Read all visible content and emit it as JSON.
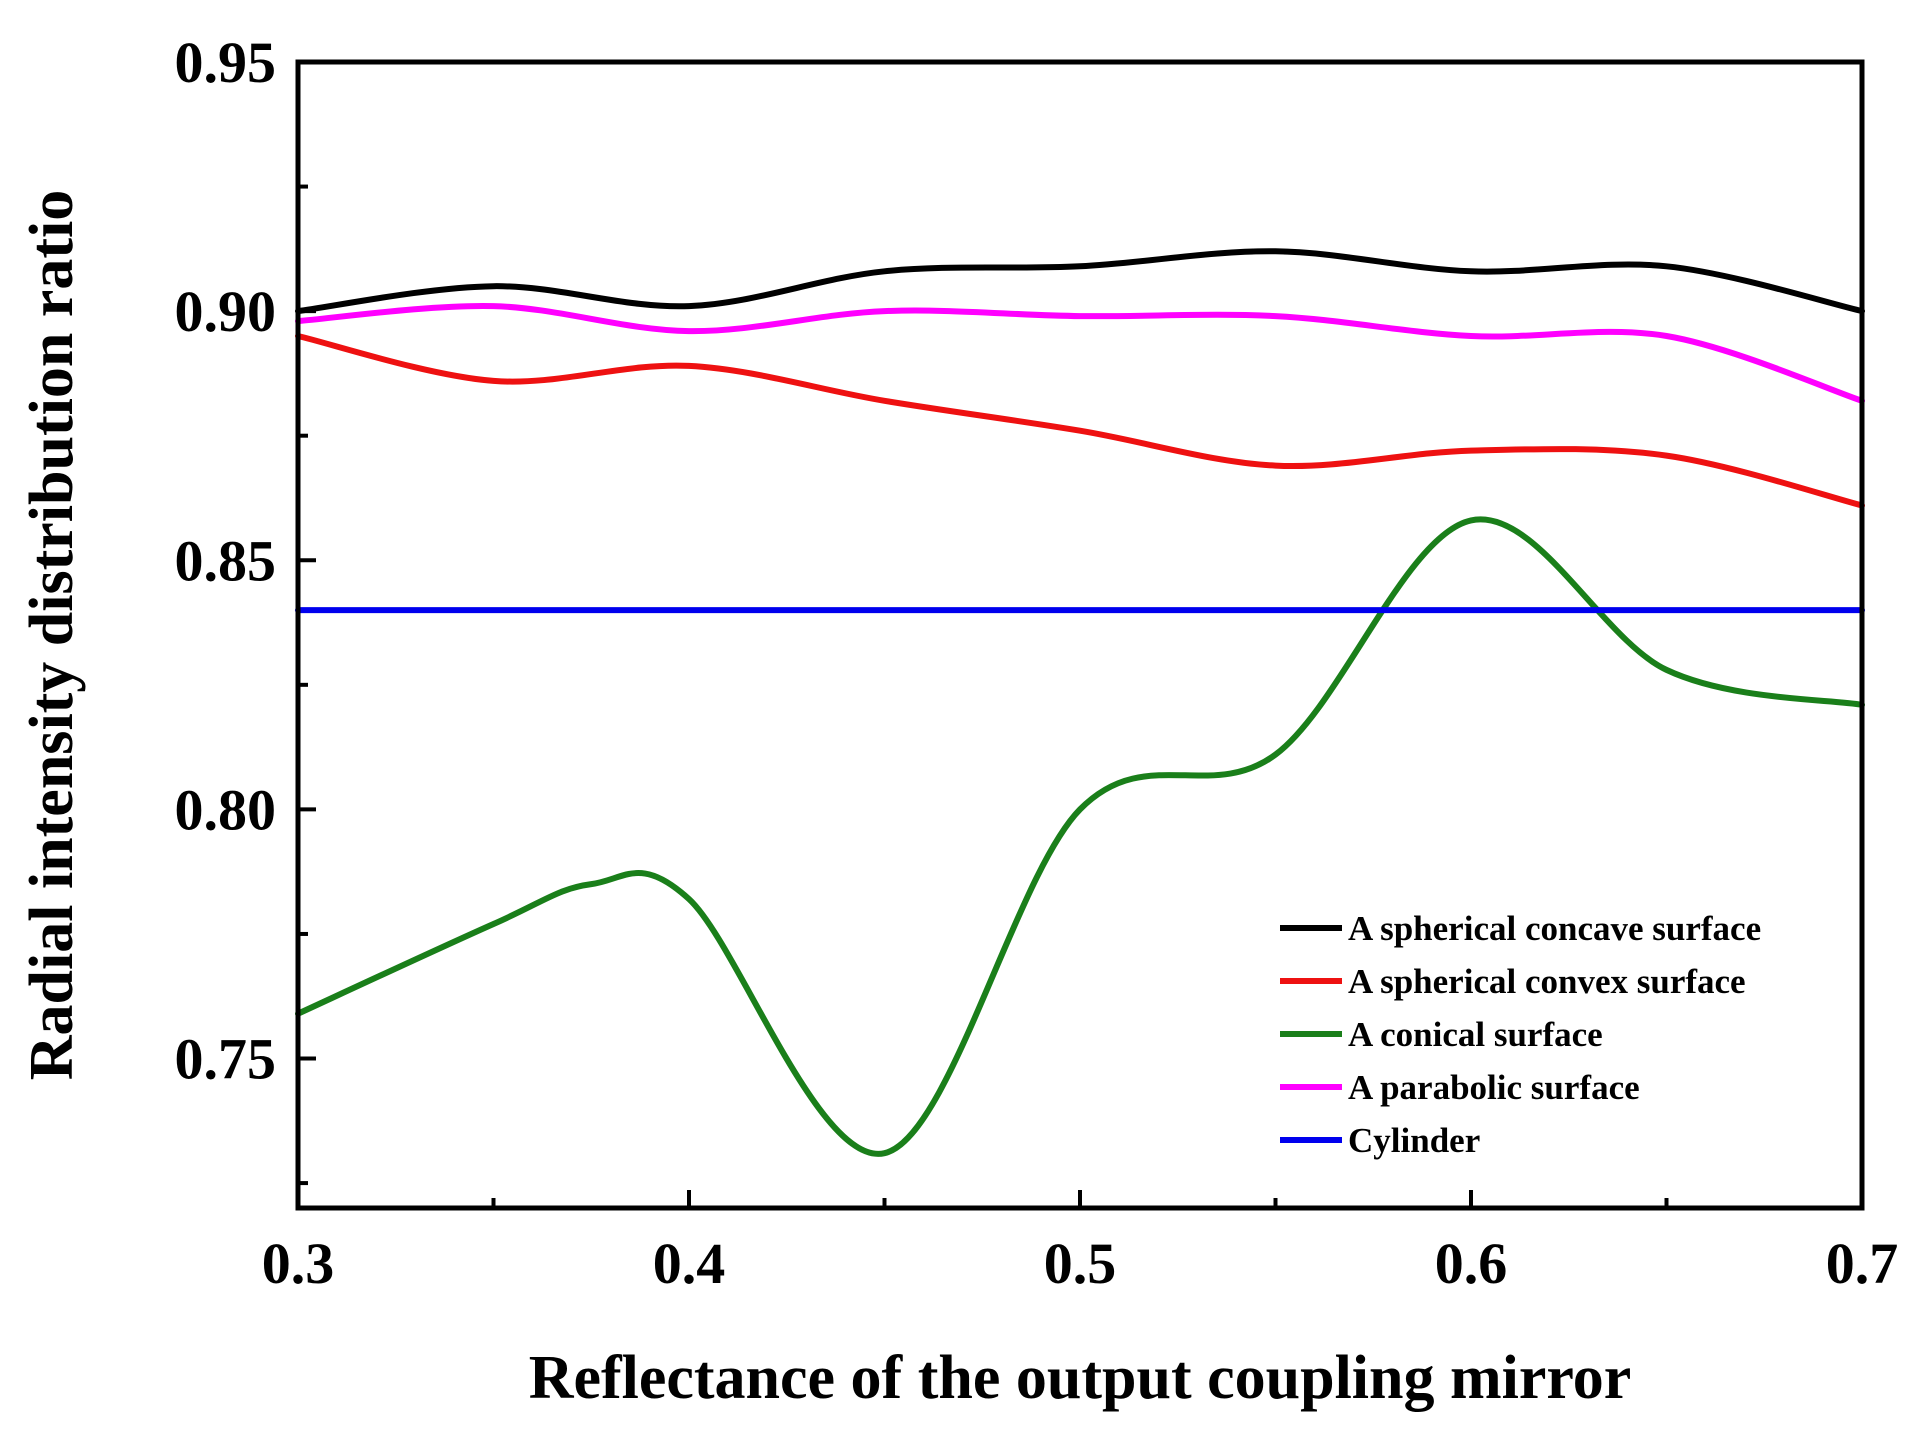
{
  "chart_data": {
    "type": "line",
    "title": "",
    "xlabel": "Reflectance of the output coupling mirror",
    "ylabel": "Radial intensity distribution ratio",
    "xlim": [
      0.3,
      0.7
    ],
    "ylim": [
      0.72,
      0.95
    ],
    "x_ticks": [
      0.3,
      0.4,
      0.5,
      0.6,
      0.7
    ],
    "x_tick_labels": [
      "0.3",
      "0.4",
      "0.5",
      "0.6",
      "0.7"
    ],
    "y_ticks": [
      0.75,
      0.8,
      0.85,
      0.9,
      0.95
    ],
    "y_tick_labels": [
      "0.75",
      "0.80",
      "0.85",
      "0.90",
      "0.95"
    ],
    "grid": false,
    "legend_position": "bottom-right",
    "series": [
      {
        "name": "A spherical concave surface",
        "color": "#000000",
        "points": [
          [
            0.3,
            0.9
          ],
          [
            0.35,
            0.905
          ],
          [
            0.4,
            0.901
          ],
          [
            0.45,
            0.908
          ],
          [
            0.5,
            0.909
          ],
          [
            0.55,
            0.912
          ],
          [
            0.6,
            0.908
          ],
          [
            0.65,
            0.909
          ],
          [
            0.7,
            0.9
          ]
        ]
      },
      {
        "name": "A spherical convex surface",
        "color": "#ee1111",
        "points": [
          [
            0.3,
            0.895
          ],
          [
            0.35,
            0.886
          ],
          [
            0.4,
            0.889
          ],
          [
            0.45,
            0.882
          ],
          [
            0.5,
            0.876
          ],
          [
            0.55,
            0.869
          ],
          [
            0.6,
            0.872
          ],
          [
            0.65,
            0.871
          ],
          [
            0.7,
            0.861
          ]
        ]
      },
      {
        "name": "A conical surface",
        "color": "#1a7f1a",
        "points": [
          [
            0.3,
            0.759
          ],
          [
            0.35,
            0.777
          ],
          [
            0.375,
            0.785
          ],
          [
            0.4,
            0.782
          ],
          [
            0.45,
            0.731
          ],
          [
            0.5,
            0.8
          ],
          [
            0.55,
            0.811
          ],
          [
            0.6,
            0.858
          ],
          [
            0.65,
            0.828
          ],
          [
            0.7,
            0.821
          ]
        ]
      },
      {
        "name": "A parabolic surface",
        "color": "#ff00ff",
        "points": [
          [
            0.3,
            0.898
          ],
          [
            0.35,
            0.901
          ],
          [
            0.4,
            0.896
          ],
          [
            0.45,
            0.9
          ],
          [
            0.5,
            0.899
          ],
          [
            0.55,
            0.899
          ],
          [
            0.6,
            0.895
          ],
          [
            0.65,
            0.895
          ],
          [
            0.7,
            0.882
          ]
        ]
      },
      {
        "name": "Cylinder",
        "color": "#0000ee",
        "points": [
          [
            0.3,
            0.84
          ],
          [
            0.7,
            0.84
          ]
        ]
      }
    ]
  }
}
